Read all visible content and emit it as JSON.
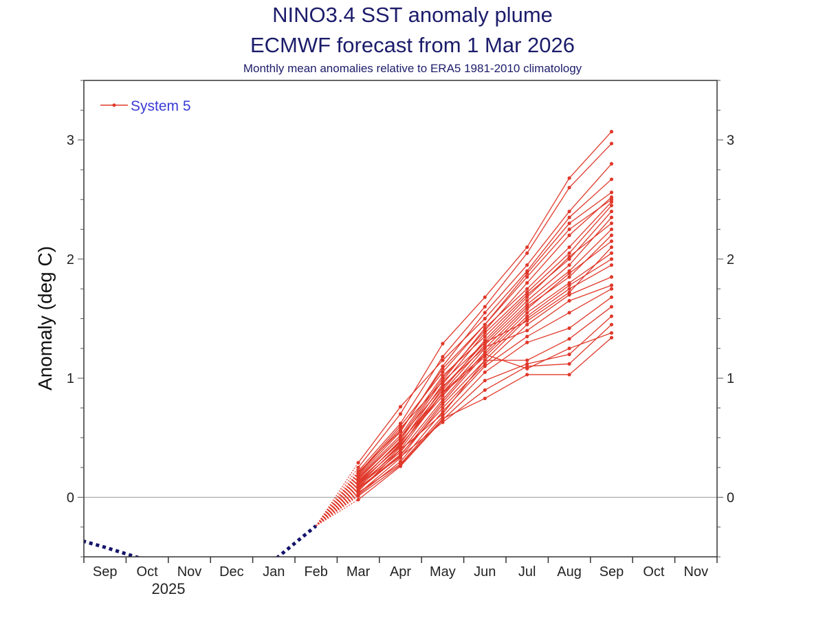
{
  "chart_data": {
    "type": "line",
    "title": "NINO3.4 SST anomaly plume",
    "subtitle_line1": "ECMWF forecast from 1 Mar 2026",
    "subtitle_line2": "Monthly mean anomalies relative to ERA5 1981-2010 climatology",
    "ylabel": "Anomaly (deg C)",
    "xlabel": "",
    "year_label": "2025",
    "x_months": [
      "Sep",
      "Oct",
      "Nov",
      "Dec",
      "Jan",
      "Feb",
      "Mar",
      "Apr",
      "May",
      "Jun",
      "Jul",
      "Aug",
      "Sep",
      "Oct",
      "Nov"
    ],
    "ylim": [
      -0.5,
      3.5
    ],
    "yticks": [
      0,
      1,
      2,
      3
    ],
    "grid": false,
    "zero_line": true,
    "legend": {
      "placement": "top-left",
      "entries": [
        "System 5"
      ]
    },
    "colors": {
      "forecast": "#e0392b",
      "observed": "#14146b",
      "title": "#1c1c6b",
      "legend_text": "#3a3ad6"
    },
    "observed": {
      "months": [
        "Aug",
        "Sep",
        "Oct",
        "Nov",
        "Dec",
        "Jan",
        "Feb"
      ],
      "values": [
        -0.32,
        -0.42,
        -0.53,
        -0.6,
        -0.6,
        -0.53,
        -0.24
      ]
    },
    "forecast": {
      "name": "System 5",
      "months": [
        "Mar",
        "Apr",
        "May",
        "Jun",
        "Jul",
        "Aug",
        "Sep"
      ],
      "members": [
        [
          0.25,
          0.7,
          1.29,
          1.68,
          2.1,
          2.68,
          3.07
        ],
        [
          0.22,
          0.62,
          1.18,
          1.6,
          2.05,
          2.6,
          2.97
        ],
        [
          0.18,
          0.55,
          1.1,
          1.55,
          1.95,
          2.4,
          2.8
        ],
        [
          0.29,
          0.76,
          1.15,
          1.5,
          1.9,
          2.35,
          2.67
        ],
        [
          0.2,
          0.6,
          1.05,
          1.45,
          1.88,
          2.3,
          2.56
        ],
        [
          0.15,
          0.5,
          1.0,
          1.4,
          1.8,
          2.2,
          2.52
        ],
        [
          0.12,
          0.48,
          0.98,
          1.42,
          1.75,
          2.1,
          2.48
        ],
        [
          0.1,
          0.45,
          0.95,
          1.38,
          1.72,
          2.05,
          2.45
        ],
        [
          0.17,
          0.52,
          1.02,
          1.35,
          1.7,
          2.0,
          2.4
        ],
        [
          0.08,
          0.42,
          0.92,
          1.3,
          1.65,
          1.95,
          2.35
        ],
        [
          0.14,
          0.46,
          0.9,
          1.32,
          1.68,
          2.02,
          2.3
        ],
        [
          0.05,
          0.4,
          0.88,
          1.28,
          1.62,
          1.9,
          2.25
        ],
        [
          0.11,
          0.44,
          0.85,
          1.25,
          1.6,
          1.85,
          2.2
        ],
        [
          0.09,
          0.38,
          0.82,
          1.22,
          1.58,
          1.88,
          2.15
        ],
        [
          0.06,
          0.35,
          0.8,
          1.2,
          1.55,
          1.8,
          2.05
        ],
        [
          0.13,
          0.47,
          0.87,
          1.18,
          1.52,
          1.78,
          2.0
        ],
        [
          0.03,
          0.33,
          0.78,
          1.15,
          1.5,
          1.75,
          1.95
        ],
        [
          0.07,
          0.36,
          0.75,
          1.12,
          1.45,
          1.7,
          1.85
        ],
        [
          0.16,
          0.5,
          0.93,
          1.26,
          1.4,
          1.65,
          1.78
        ],
        [
          0.02,
          0.3,
          0.72,
          1.1,
          1.35,
          1.55,
          1.75
        ],
        [
          0.19,
          0.58,
          0.97,
          1.3,
          1.48,
          1.72,
          2.1
        ],
        [
          0.04,
          0.28,
          0.68,
          1.05,
          1.3,
          1.42,
          1.68
        ],
        [
          0.1,
          0.4,
          0.7,
          1.15,
          1.15,
          1.33,
          1.6
        ],
        [
          -0.02,
          0.26,
          0.65,
          0.98,
          1.12,
          1.2,
          1.52
        ],
        [
          0.08,
          0.34,
          0.63,
          0.9,
          1.1,
          1.12,
          1.45
        ],
        [
          0.01,
          0.27,
          0.66,
          0.83,
          1.03,
          1.03,
          1.34
        ],
        [
          0.12,
          0.43,
          0.88,
          1.2,
          1.08,
          1.25,
          1.38
        ],
        [
          0.21,
          0.56,
          1.08,
          1.45,
          1.85,
          2.25,
          2.5
        ]
      ]
    }
  }
}
